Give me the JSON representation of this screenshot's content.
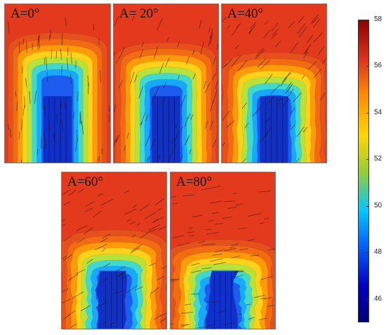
{
  "panels": [
    {
      "label": "A=0°",
      "angle_deg": 0
    },
    {
      "label": "A= 20°",
      "angle_deg": 20
    },
    {
      "label": "A=40°",
      "angle_deg": 40
    },
    {
      "label": "A=60°",
      "angle_deg": 60
    },
    {
      "label": "A=80°",
      "angle_deg": 80
    }
  ],
  "colorbar": {
    "min": 45,
    "max": 58,
    "ticks": [
      "58",
      "56",
      "54",
      "52",
      "50",
      "48",
      "46"
    ],
    "colors": [
      "#8b0000",
      "#e0321c",
      "#ff8c00",
      "#ffd700",
      "#9acd32",
      "#00c8ff",
      "#0060ff",
      "#0000c0",
      "#00007a"
    ]
  }
}
